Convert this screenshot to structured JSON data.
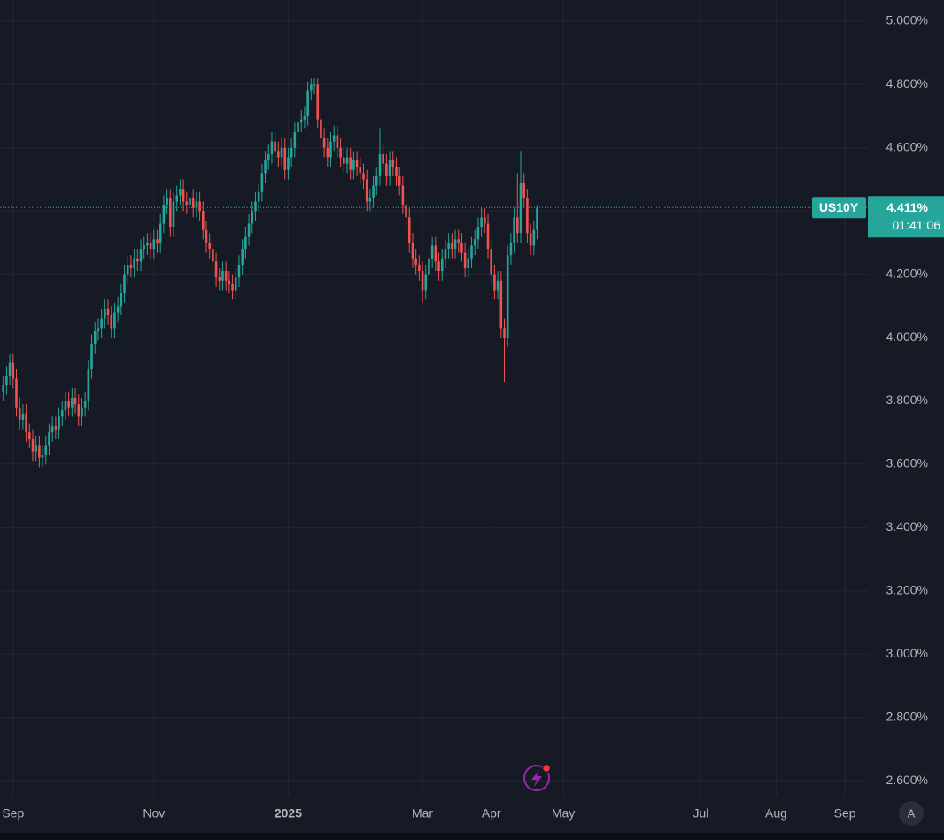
{
  "chart_data": {
    "type": "candlestick",
    "symbol": "US10Y",
    "countdown": "01:41:06",
    "last_price": {
      "value": 4.411,
      "label": "4.411%"
    },
    "up_color": "#26a69a",
    "down_color": "#ef5350",
    "grid": true,
    "xlim": [
      0,
      265
    ],
    "xticks": [
      {
        "value": 4,
        "label": "Sep"
      },
      {
        "value": 47,
        "label": "Nov"
      },
      {
        "value": 88,
        "label": "2025"
      },
      {
        "value": 129,
        "label": "Mar"
      },
      {
        "value": 150,
        "label": "Apr"
      },
      {
        "value": 172,
        "label": "May"
      },
      {
        "value": 214,
        "label": "Jul"
      },
      {
        "value": 237,
        "label": "Aug"
      },
      {
        "value": 258,
        "label": "Sep"
      }
    ],
    "ylim": [
      2.547,
      5.067
    ],
    "yticks": [
      {
        "value": 2.6,
        "label": "2.600%"
      },
      {
        "value": 2.8,
        "label": "2.800%"
      },
      {
        "value": 3.0,
        "label": "3.000%"
      },
      {
        "value": 3.2,
        "label": "3.200%"
      },
      {
        "value": 3.4,
        "label": "3.400%"
      },
      {
        "value": 3.6,
        "label": "3.600%"
      },
      {
        "value": 3.8,
        "label": "3.800%"
      },
      {
        "value": 4.0,
        "label": "4.000%"
      },
      {
        "value": 4.2,
        "label": "4.200%"
      },
      {
        "value": 4.4,
        "label": "4.400%"
      },
      {
        "value": 4.6,
        "label": "4.600%"
      },
      {
        "value": 4.8,
        "label": "4.800%"
      },
      {
        "value": 5.0,
        "label": "5.000%"
      }
    ],
    "open": [
      3.83,
      3.85,
      3.88,
      3.92,
      3.87,
      3.78,
      3.74,
      3.76,
      3.7,
      3.68,
      3.64,
      3.66,
      3.62,
      3.63,
      3.66,
      3.7,
      3.72,
      3.71,
      3.75,
      3.77,
      3.8,
      3.78,
      3.81,
      3.79,
      3.75,
      3.78,
      3.8,
      3.9,
      3.98,
      4.02,
      4.03,
      4.06,
      4.09,
      4.07,
      4.03,
      4.08,
      4.1,
      4.14,
      4.2,
      4.23,
      4.22,
      4.25,
      4.24,
      4.28,
      4.29,
      4.3,
      4.28,
      4.31,
      4.3,
      4.36,
      4.42,
      4.44,
      4.35,
      4.43,
      4.45,
      4.47,
      4.43,
      4.42,
      4.44,
      4.41,
      4.43,
      4.4,
      4.34,
      4.3,
      4.28,
      4.24,
      4.19,
      4.18,
      4.21,
      4.18,
      4.17,
      4.15,
      4.19,
      4.23,
      4.28,
      4.32,
      4.36,
      4.4,
      4.43,
      4.46,
      4.52,
      4.56,
      4.58,
      4.62,
      4.59,
      4.57,
      4.6,
      4.53,
      4.57,
      4.6,
      4.65,
      4.68,
      4.69,
      4.7,
      4.78,
      4.8,
      4.8,
      4.69,
      4.63,
      4.6,
      4.57,
      4.62,
      4.64,
      4.6,
      4.57,
      4.55,
      4.57,
      4.53,
      4.56,
      4.54,
      4.52,
      4.5,
      4.43,
      4.44,
      4.48,
      4.51,
      4.58,
      4.55,
      4.51,
      4.56,
      4.54,
      4.51,
      4.48,
      4.42,
      4.38,
      4.3,
      4.25,
      4.23,
      4.21,
      4.15,
      4.2,
      4.25,
      4.29,
      4.24,
      4.21,
      4.25,
      4.28,
      4.3,
      4.28,
      4.31,
      4.3,
      4.27,
      4.22,
      4.25,
      4.29,
      4.31,
      4.35,
      4.38,
      4.36,
      4.28,
      4.2,
      4.15,
      4.18,
      4.03,
      4.0,
      4.26,
      4.3,
      4.38,
      4.33,
      4.49,
      4.44,
      4.33,
      4.29,
      4.34
    ],
    "high": [
      3.88,
      3.91,
      3.95,
      3.95,
      3.9,
      3.81,
      3.79,
      3.79,
      3.73,
      3.71,
      3.69,
      3.69,
      3.66,
      3.69,
      3.73,
      3.75,
      3.75,
      3.78,
      3.8,
      3.83,
      3.83,
      3.84,
      3.84,
      3.82,
      3.81,
      3.83,
      3.93,
      4.01,
      4.05,
      4.06,
      4.09,
      4.12,
      4.12,
      4.1,
      4.11,
      4.13,
      4.17,
      4.23,
      4.26,
      4.26,
      4.28,
      4.28,
      4.31,
      4.32,
      4.33,
      4.33,
      4.34,
      4.34,
      4.39,
      4.45,
      4.47,
      4.47,
      4.46,
      4.48,
      4.5,
      4.5,
      4.46,
      4.47,
      4.47,
      4.46,
      4.46,
      4.43,
      4.37,
      4.33,
      4.31,
      4.27,
      4.22,
      4.24,
      4.24,
      4.21,
      4.2,
      4.22,
      4.26,
      4.31,
      4.35,
      4.39,
      4.43,
      4.46,
      4.49,
      4.55,
      4.59,
      4.61,
      4.65,
      4.65,
      4.62,
      4.63,
      4.63,
      4.6,
      4.63,
      4.68,
      4.71,
      4.72,
      4.73,
      4.81,
      4.82,
      4.82,
      4.82,
      4.72,
      4.66,
      4.63,
      4.65,
      4.67,
      4.67,
      4.63,
      4.6,
      4.6,
      4.6,
      4.59,
      4.59,
      4.57,
      4.55,
      4.53,
      4.47,
      4.51,
      4.54,
      4.66,
      4.61,
      4.58,
      4.59,
      4.59,
      4.57,
      4.54,
      4.51,
      4.45,
      4.41,
      4.33,
      4.28,
      4.26,
      4.24,
      4.23,
      4.28,
      4.32,
      4.32,
      4.27,
      4.28,
      4.31,
      4.33,
      4.33,
      4.34,
      4.34,
      4.33,
      4.3,
      4.28,
      4.32,
      4.34,
      4.38,
      4.41,
      4.41,
      4.39,
      4.31,
      4.23,
      4.21,
      4.21,
      4.06,
      4.29,
      4.33,
      4.41,
      4.52,
      4.59,
      4.52,
      4.47,
      4.36,
      4.37,
      4.42
    ],
    "low": [
      3.8,
      3.82,
      3.85,
      3.84,
      3.75,
      3.71,
      3.71,
      3.67,
      3.65,
      3.61,
      3.61,
      3.59,
      3.59,
      3.6,
      3.63,
      3.67,
      3.68,
      3.68,
      3.72,
      3.74,
      3.75,
      3.75,
      3.76,
      3.72,
      3.72,
      3.75,
      3.77,
      3.87,
      3.95,
      3.99,
      4.0,
      4.03,
      4.04,
      4.0,
      4.0,
      4.05,
      4.07,
      4.11,
      4.17,
      4.19,
      4.19,
      4.21,
      4.21,
      4.25,
      4.26,
      4.25,
      4.25,
      4.27,
      4.27,
      4.33,
      4.39,
      4.32,
      4.32,
      4.4,
      4.42,
      4.4,
      4.39,
      4.39,
      4.38,
      4.38,
      4.37,
      4.31,
      4.27,
      4.25,
      4.21,
      4.16,
      4.15,
      4.15,
      4.15,
      4.14,
      4.12,
      4.12,
      4.16,
      4.2,
      4.25,
      4.29,
      4.33,
      4.37,
      4.4,
      4.43,
      4.49,
      4.53,
      4.55,
      4.56,
      4.54,
      4.54,
      4.5,
      4.5,
      4.54,
      4.57,
      4.62,
      4.65,
      4.66,
      4.67,
      4.75,
      4.77,
      4.66,
      4.6,
      4.57,
      4.54,
      4.54,
      4.59,
      4.57,
      4.54,
      4.52,
      4.52,
      4.5,
      4.5,
      4.51,
      4.49,
      4.47,
      4.4,
      4.4,
      4.41,
      4.45,
      4.48,
      4.52,
      4.48,
      4.48,
      4.51,
      4.48,
      4.45,
      4.39,
      4.35,
      4.27,
      4.22,
      4.2,
      4.18,
      4.11,
      4.12,
      4.17,
      4.22,
      4.21,
      4.18,
      4.18,
      4.22,
      4.25,
      4.25,
      4.25,
      4.27,
      4.24,
      4.19,
      4.19,
      4.22,
      4.26,
      4.28,
      4.32,
      4.33,
      4.25,
      4.17,
      4.12,
      4.12,
      4.0,
      3.86,
      3.97,
      4.23,
      4.27,
      4.3,
      4.3,
      4.41,
      4.3,
      4.26,
      4.26,
      4.31
    ],
    "close": [
      3.85,
      3.88,
      3.92,
      3.87,
      3.78,
      3.74,
      3.76,
      3.7,
      3.68,
      3.64,
      3.66,
      3.62,
      3.63,
      3.66,
      3.7,
      3.72,
      3.71,
      3.75,
      3.77,
      3.8,
      3.78,
      3.81,
      3.79,
      3.75,
      3.78,
      3.8,
      3.9,
      3.98,
      4.02,
      4.03,
      4.06,
      4.09,
      4.07,
      4.03,
      4.08,
      4.1,
      4.14,
      4.2,
      4.23,
      4.22,
      4.25,
      4.24,
      4.28,
      4.29,
      4.3,
      4.28,
      4.31,
      4.3,
      4.36,
      4.42,
      4.44,
      4.35,
      4.43,
      4.45,
      4.47,
      4.43,
      4.42,
      4.44,
      4.41,
      4.43,
      4.4,
      4.34,
      4.3,
      4.28,
      4.24,
      4.19,
      4.18,
      4.21,
      4.18,
      4.17,
      4.15,
      4.19,
      4.23,
      4.28,
      4.32,
      4.36,
      4.4,
      4.43,
      4.46,
      4.52,
      4.56,
      4.58,
      4.62,
      4.59,
      4.57,
      4.6,
      4.53,
      4.57,
      4.6,
      4.65,
      4.68,
      4.69,
      4.7,
      4.78,
      4.8,
      4.8,
      4.69,
      4.63,
      4.6,
      4.57,
      4.62,
      4.64,
      4.6,
      4.57,
      4.55,
      4.57,
      4.53,
      4.56,
      4.54,
      4.52,
      4.5,
      4.43,
      4.44,
      4.48,
      4.51,
      4.58,
      4.55,
      4.51,
      4.56,
      4.54,
      4.51,
      4.48,
      4.42,
      4.38,
      4.3,
      4.25,
      4.23,
      4.21,
      4.15,
      4.2,
      4.25,
      4.29,
      4.24,
      4.21,
      4.25,
      4.28,
      4.3,
      4.28,
      4.31,
      4.3,
      4.27,
      4.22,
      4.25,
      4.29,
      4.31,
      4.35,
      4.38,
      4.36,
      4.28,
      4.2,
      4.15,
      4.18,
      4.03,
      4.0,
      4.26,
      4.3,
      4.38,
      4.33,
      4.49,
      4.44,
      4.33,
      4.29,
      4.34,
      4.411
    ]
  },
  "auto_scale_button": "A"
}
